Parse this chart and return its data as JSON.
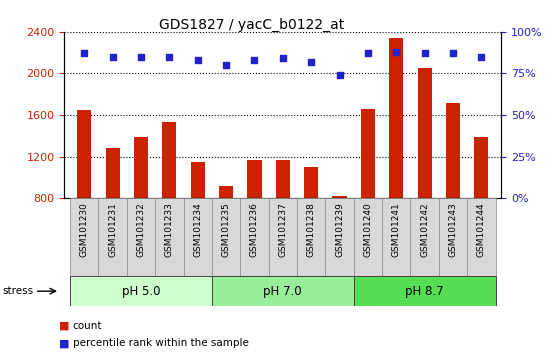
{
  "title": "GDS1827 / yacC_b0122_at",
  "samples": [
    "GSM101230",
    "GSM101231",
    "GSM101232",
    "GSM101233",
    "GSM101234",
    "GSM101235",
    "GSM101236",
    "GSM101237",
    "GSM101238",
    "GSM101239",
    "GSM101240",
    "GSM101241",
    "GSM101242",
    "GSM101243",
    "GSM101244"
  ],
  "counts": [
    1650,
    1280,
    1390,
    1530,
    1150,
    920,
    1170,
    1170,
    1100,
    820,
    1660,
    2340,
    2050,
    1720,
    1390
  ],
  "percentiles": [
    87,
    85,
    85,
    85,
    83,
    80,
    83,
    84,
    82,
    74,
    87,
    88,
    87,
    87,
    85
  ],
  "ylim_left": [
    800,
    2400
  ],
  "ylim_right": [
    0,
    100
  ],
  "yticks_left": [
    800,
    1200,
    1600,
    2000,
    2400
  ],
  "yticks_right": [
    0,
    25,
    50,
    75,
    100
  ],
  "groups": [
    {
      "label": "pH 5.0",
      "start": 0,
      "end": 5,
      "color": "#ccffcc"
    },
    {
      "label": "pH 7.0",
      "start": 5,
      "end": 10,
      "color": "#99ee99"
    },
    {
      "label": "pH 8.7",
      "start": 10,
      "end": 15,
      "color": "#55dd55"
    }
  ],
  "bar_color": "#cc2200",
  "dot_color": "#2222cc",
  "bar_width": 0.5,
  "grid_color": "#000000",
  "bg_color": "#ffffff",
  "tick_label_color": "#000000",
  "left_axis_color": "#cc2200",
  "right_axis_color": "#2222cc",
  "legend_items": [
    {
      "label": "count",
      "color": "#cc2200"
    },
    {
      "label": "percentile rank within the sample",
      "color": "#2222cc"
    }
  ],
  "stress_label": "stress"
}
